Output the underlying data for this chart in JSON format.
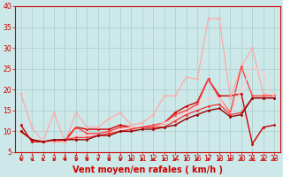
{
  "xlabel": "Vent moyen/en rafales ( km/h )",
  "background_color": "#cce8e8",
  "grid_color": "#aacccc",
  "xlim": [
    -0.5,
    23.5
  ],
  "ylim": [
    5,
    40
  ],
  "yticks": [
    5,
    10,
    15,
    20,
    25,
    30,
    35,
    40
  ],
  "xticks": [
    0,
    1,
    2,
    3,
    4,
    5,
    6,
    7,
    8,
    9,
    10,
    11,
    12,
    13,
    14,
    15,
    16,
    17,
    18,
    19,
    20,
    21,
    22,
    23
  ],
  "series": [
    {
      "x": [
        0,
        1,
        2,
        3,
        4,
        5,
        6,
        7,
        8,
        9,
        10,
        11,
        12,
        13,
        14,
        15,
        16,
        17,
        18,
        19,
        20,
        21,
        22,
        23
      ],
      "y": [
        11.5,
        7.5,
        7.5,
        7.5,
        8.0,
        11.0,
        10.5,
        10.5,
        10.5,
        11.5,
        11.0,
        11.0,
        11.0,
        12.0,
        14.5,
        16.0,
        17.0,
        22.5,
        18.5,
        18.5,
        19.0,
        7.0,
        11.0,
        11.5
      ],
      "color": "#cc0000",
      "lw": 1.0,
      "marker": "o",
      "ms": 2.0
    },
    {
      "x": [
        0,
        1,
        2,
        3,
        4,
        5,
        6,
        7,
        8,
        9,
        10,
        11,
        12,
        13,
        14,
        15,
        16,
        17,
        18,
        19,
        20,
        21,
        22,
        23
      ],
      "y": [
        19.0,
        11.0,
        7.5,
        14.5,
        7.5,
        14.5,
        11.0,
        11.0,
        13.0,
        14.5,
        11.5,
        12.0,
        14.0,
        18.5,
        18.5,
        23.0,
        22.5,
        37.0,
        37.0,
        18.0,
        25.5,
        30.0,
        19.0,
        18.5
      ],
      "color": "#ffaaaa",
      "lw": 0.9,
      "marker": "o",
      "ms": 2.0
    },
    {
      "x": [
        0,
        1,
        2,
        3,
        4,
        5,
        6,
        7,
        8,
        9,
        10,
        11,
        12,
        13,
        14,
        15,
        16,
        17,
        18,
        19,
        20,
        21,
        22,
        23
      ],
      "y": [
        10.0,
        8.0,
        7.5,
        7.5,
        7.5,
        11.0,
        9.5,
        9.5,
        10.0,
        11.0,
        11.0,
        11.0,
        11.5,
        12.0,
        14.0,
        15.0,
        16.5,
        22.5,
        18.0,
        14.5,
        25.5,
        18.5,
        18.5,
        18.5
      ],
      "color": "#ff4444",
      "lw": 1.0,
      "marker": "o",
      "ms": 2.0
    },
    {
      "x": [
        0,
        1,
        2,
        3,
        4,
        5,
        6,
        7,
        8,
        9,
        10,
        11,
        12,
        13,
        14,
        15,
        16,
        17,
        18,
        19,
        20,
        21,
        22,
        23
      ],
      "y": [
        10.0,
        8.0,
        7.5,
        7.5,
        7.5,
        9.0,
        9.0,
        9.0,
        9.5,
        10.5,
        11.0,
        11.0,
        11.0,
        12.0,
        13.0,
        14.5,
        16.0,
        18.0,
        18.0,
        14.0,
        20.0,
        25.5,
        24.0,
        18.0
      ],
      "color": "#ffcccc",
      "lw": 0.9,
      "marker": "o",
      "ms": 2.0
    },
    {
      "x": [
        0,
        1,
        2,
        3,
        4,
        5,
        6,
        7,
        8,
        9,
        10,
        11,
        12,
        13,
        14,
        15,
        16,
        17,
        18,
        19,
        20,
        21,
        22,
        23
      ],
      "y": [
        10.0,
        8.0,
        7.5,
        8.0,
        8.0,
        8.5,
        8.5,
        9.0,
        9.5,
        10.0,
        10.5,
        11.0,
        11.0,
        11.0,
        12.5,
        14.0,
        15.0,
        16.0,
        16.5,
        14.0,
        14.5,
        18.0,
        18.0,
        18.0
      ],
      "color": "#ee3333",
      "lw": 0.9,
      "marker": "o",
      "ms": 2.0
    },
    {
      "x": [
        0,
        1,
        2,
        3,
        4,
        5,
        6,
        7,
        8,
        9,
        10,
        11,
        12,
        13,
        14,
        15,
        16,
        17,
        18,
        19,
        20,
        21,
        22,
        23
      ],
      "y": [
        10.0,
        8.0,
        7.5,
        8.0,
        8.0,
        8.0,
        8.0,
        9.0,
        9.0,
        10.0,
        10.0,
        10.5,
        10.5,
        11.0,
        11.5,
        13.0,
        14.0,
        15.0,
        15.5,
        13.5,
        14.0,
        18.0,
        18.0,
        18.0
      ],
      "color": "#990000",
      "lw": 1.0,
      "marker": "o",
      "ms": 2.0
    }
  ],
  "arrow_color": "#cc0000",
  "xlabel_color": "#cc0000",
  "xlabel_fontsize": 7,
  "tick_label_color": "#cc0000",
  "tick_fontsize": 5.5,
  "spine_color": "#cc0000"
}
